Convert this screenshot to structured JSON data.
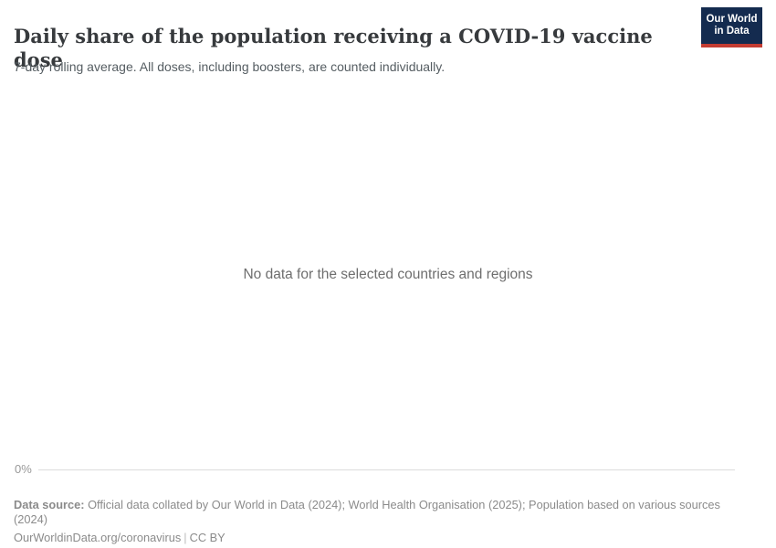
{
  "header": {
    "title": "Daily share of the population receiving a COVID-19 vaccine dose",
    "subtitle": "7-day rolling average. All doses, including boosters, are counted individually.",
    "logo": {
      "line1": "Our World",
      "line2": "in Data",
      "background_color": "#142b4f",
      "stripe_color": "#c43c32",
      "text_color": "#ffffff"
    }
  },
  "chart": {
    "empty_message": "No data for the selected countries and regions",
    "axis": {
      "tick_label": "0%",
      "line_color": "#dcdcdc"
    },
    "chart_data": {
      "type": "line",
      "title": "Daily share of the population receiving a COVID-19 vaccine dose",
      "subtitle": "7-day rolling average. All doses, including boosters, are counted individually.",
      "series": [],
      "categories": [],
      "xlabel": "",
      "ylabel": "",
      "y_axis_ticks": [
        "0%"
      ],
      "grid": false,
      "legend_position": "none",
      "empty_message": "No data for the selected countries and regions"
    }
  },
  "footer": {
    "data_source_label": "Data source:",
    "data_source_text": "Official data collated by Our World in Data (2024); World Health Organisation (2025); Population based on various sources (2024)",
    "url": "OurWorldinData.org/coronavirus",
    "separator": "|",
    "license": "CC BY"
  }
}
